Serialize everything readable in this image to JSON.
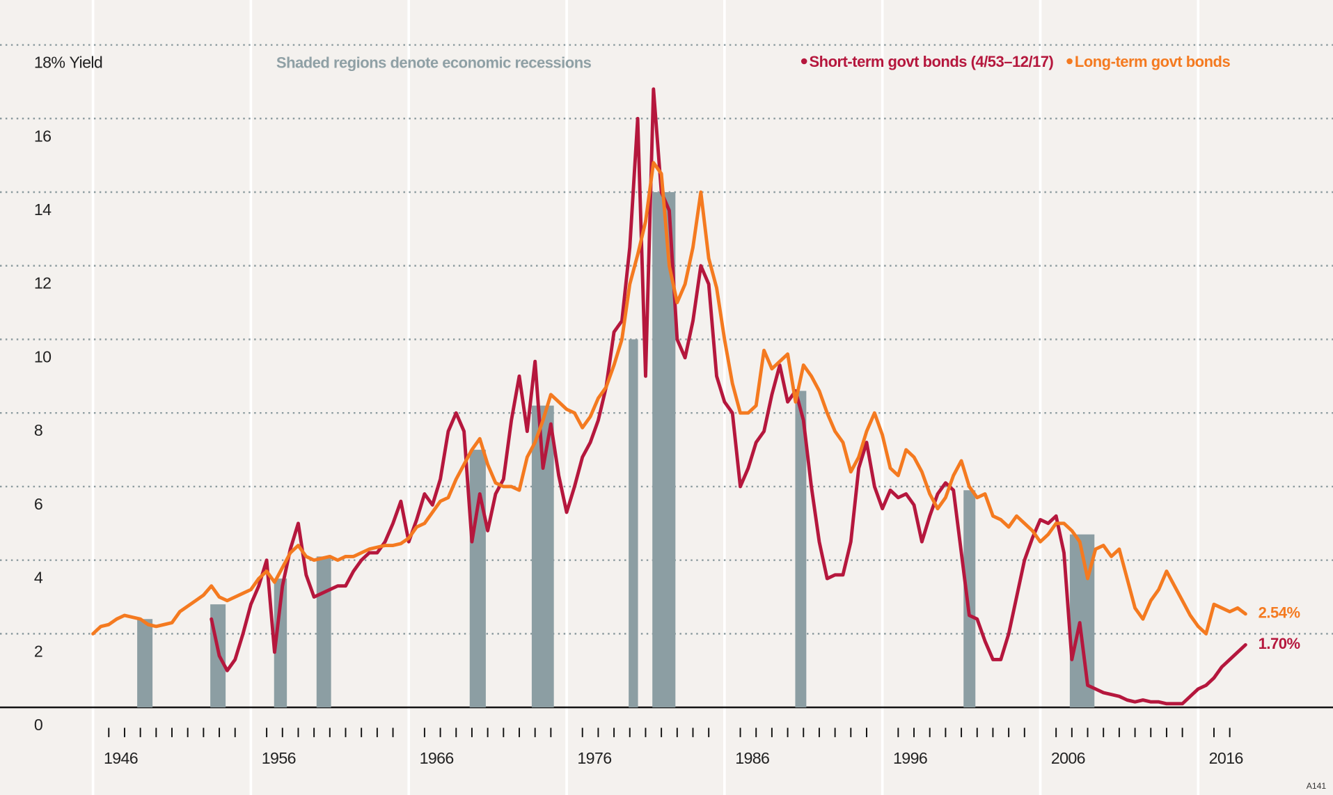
{
  "chart_data": {
    "type": "line",
    "annotation": "Shaded regions denote economic recessions",
    "ylabel": "Yield",
    "footer": "A141",
    "legend": "top-right",
    "xlim": [
      1939.11,
      2023.54
    ],
    "ylim": [
      -2.38,
      19.22
    ],
    "yticks": [
      0,
      2,
      4,
      6,
      8,
      10,
      12,
      14,
      16,
      {
        "value": 18,
        "label": "18%"
      }
    ],
    "xticks": [
      1946,
      1956,
      1966,
      1976,
      1986,
      1996,
      2006,
      2016
    ],
    "xminor_ticks": [
      1946,
      1947,
      1948,
      1949,
      1950,
      1951,
      1952,
      1953,
      1954,
      1956,
      1957,
      1958,
      1959,
      1960,
      1961,
      1962,
      1963,
      1964,
      1966,
      1967,
      1968,
      1969,
      1970,
      1971,
      1972,
      1973,
      1974,
      1976,
      1977,
      1978,
      1979,
      1980,
      1981,
      1982,
      1983,
      1984,
      1986,
      1987,
      1988,
      1989,
      1990,
      1991,
      1992,
      1993,
      1994,
      1996,
      1997,
      1998,
      1999,
      2000,
      2001,
      2002,
      2003,
      2004,
      2006,
      2007,
      2008,
      2009,
      2010,
      2011,
      2012,
      2013,
      2014,
      2016,
      2017
    ],
    "xgrid": [
      1945,
      1955,
      1965,
      1975,
      1985,
      1995,
      2005,
      2015
    ],
    "recession_color": "#8c9ea3",
    "recessions": [
      {
        "start": 1947.8,
        "end": 1948.77,
        "top": 2.4
      },
      {
        "start": 1952.43,
        "end": 1953.4,
        "top": 2.8
      },
      {
        "start": 1956.47,
        "end": 1957.28,
        "top": 3.5
      },
      {
        "start": 1959.16,
        "end": 1960.08,
        "top": 4.1
      },
      {
        "start": 1968.86,
        "end": 1969.88,
        "top": 7.0
      },
      {
        "start": 1972.79,
        "end": 1974.19,
        "top": 8.2
      },
      {
        "start": 1978.93,
        "end": 1979.52,
        "top": 10.0
      },
      {
        "start": 1980.43,
        "end": 1981.89,
        "top": 14.0
      },
      {
        "start": 1989.48,
        "end": 1990.18,
        "top": 8.6
      },
      {
        "start": 2000.14,
        "end": 2000.89,
        "top": 5.9
      },
      {
        "start": 2006.87,
        "end": 2008.43,
        "top": 4.7
      }
    ],
    "x": [
      1945,
      1945.5,
      1946,
      1946.5,
      1947,
      1947.5,
      1948,
      1948.5,
      1949,
      1949.5,
      1950,
      1950.5,
      1951,
      1951.5,
      1952,
      1952.5,
      1953,
      1953.5,
      1954,
      1954.5,
      1955,
      1955.5,
      1956,
      1956.5,
      1957,
      1957.5,
      1958,
      1958.5,
      1959,
      1959.5,
      1960,
      1960.5,
      1961,
      1961.5,
      1962,
      1962.5,
      1963,
      1963.5,
      1964,
      1964.5,
      1965,
      1965.5,
      1966,
      1966.5,
      1967,
      1967.5,
      1968,
      1968.5,
      1969,
      1969.5,
      1970,
      1970.5,
      1971,
      1971.5,
      1972,
      1972.5,
      1973,
      1973.5,
      1974,
      1974.5,
      1975,
      1975.5,
      1976,
      1976.5,
      1977,
      1977.5,
      1978,
      1978.5,
      1979,
      1979.5,
      1980,
      1980.5,
      1981,
      1981.5,
      1982,
      1982.5,
      1983,
      1983.5,
      1984,
      1984.5,
      1985,
      1985.5,
      1986,
      1986.5,
      1987,
      1987.5,
      1988,
      1988.5,
      1989,
      1989.5,
      1990,
      1990.5,
      1991,
      1991.5,
      1992,
      1992.5,
      1993,
      1993.5,
      1994,
      1994.5,
      1995,
      1995.5,
      1996,
      1996.5,
      1997,
      1997.5,
      1998,
      1998.5,
      1999,
      1999.5,
      2000,
      2000.5,
      2001,
      2001.5,
      2002,
      2002.5,
      2003,
      2003.5,
      2004,
      2004.5,
      2005,
      2005.5,
      2006,
      2006.5,
      2007,
      2007.5,
      2008,
      2008.5,
      2009,
      2009.5,
      2010,
      2010.5,
      2011,
      2011.5,
      2012,
      2012.5,
      2013,
      2013.5,
      2014,
      2014.5,
      2015,
      2015.5,
      2016,
      2016.5,
      2017,
      2017.5,
      2018
    ],
    "series": [
      {
        "name": "Short-term govt bonds (4/53–12/17)",
        "color": "#b5173d",
        "end_label": "1.70%",
        "values": [
          null,
          null,
          null,
          null,
          null,
          null,
          null,
          null,
          null,
          null,
          null,
          null,
          null,
          null,
          null,
          2.4,
          1.4,
          1.0,
          1.3,
          2.0,
          2.8,
          3.3,
          4.0,
          1.5,
          3.3,
          4.3,
          5.0,
          3.6,
          3.0,
          3.1,
          3.2,
          3.3,
          3.3,
          3.7,
          4.0,
          4.2,
          4.2,
          4.5,
          5.0,
          5.6,
          4.5,
          5.1,
          5.8,
          5.5,
          6.2,
          7.5,
          8.0,
          7.5,
          4.5,
          5.8,
          4.8,
          5.8,
          6.2,
          7.8,
          9.0,
          7.5,
          9.4,
          6.5,
          7.7,
          6.3,
          5.3,
          6.0,
          6.8,
          7.2,
          7.8,
          8.7,
          10.2,
          10.5,
          12.5,
          16.0,
          9.0,
          16.8,
          14.0,
          13.5,
          10.0,
          9.5,
          10.5,
          12.0,
          11.5,
          9.0,
          8.3,
          8.0,
          6.0,
          6.5,
          7.2,
          7.5,
          8.5,
          9.3,
          8.3,
          8.6,
          7.8,
          6.0,
          4.5,
          3.5,
          3.6,
          3.6,
          4.5,
          6.5,
          7.2,
          6.0,
          5.4,
          5.9,
          5.7,
          5.8,
          5.5,
          4.5,
          5.2,
          5.8,
          6.1,
          5.9,
          4.2,
          2.5,
          2.4,
          1.8,
          1.3,
          1.3,
          2.0,
          3.0,
          4.0,
          4.6,
          5.1,
          5.0,
          5.2,
          4.2,
          1.3,
          2.3,
          0.6,
          0.5,
          0.4,
          0.35,
          0.3,
          0.2,
          0.15,
          0.2,
          0.15,
          0.15,
          0.1,
          0.1,
          0.1,
          0.3,
          0.5,
          0.6,
          0.8,
          1.1,
          1.3,
          1.5,
          1.7
        ]
      },
      {
        "name": "Long-term govt bonds",
        "color": "#f47a20",
        "end_label": "2.54%",
        "values": [
          2.0,
          2.2,
          2.25,
          2.4,
          2.5,
          2.45,
          2.4,
          2.25,
          2.2,
          2.25,
          2.3,
          2.6,
          2.75,
          2.9,
          3.05,
          3.3,
          3.0,
          2.9,
          3.0,
          3.1,
          3.2,
          3.5,
          3.7,
          3.4,
          3.8,
          4.2,
          4.4,
          4.1,
          4.0,
          4.05,
          4.1,
          4.0,
          4.1,
          4.1,
          4.2,
          4.3,
          4.35,
          4.4,
          4.4,
          4.45,
          4.6,
          4.9,
          5.0,
          5.3,
          5.6,
          5.7,
          6.2,
          6.6,
          7.0,
          7.3,
          6.6,
          6.1,
          6.0,
          6.0,
          5.9,
          6.8,
          7.2,
          7.8,
          8.5,
          8.3,
          8.1,
          8.0,
          7.6,
          7.9,
          8.4,
          8.7,
          9.3,
          10.0,
          11.5,
          12.3,
          13.2,
          14.8,
          14.5,
          12.0,
          11.0,
          11.5,
          12.5,
          14.0,
          12.2,
          11.4,
          10.0,
          8.8,
          8.0,
          8.0,
          8.2,
          9.7,
          9.2,
          9.4,
          9.6,
          8.3,
          9.3,
          9.0,
          8.6,
          8.0,
          7.5,
          7.2,
          6.4,
          6.8,
          7.5,
          8.0,
          7.4,
          6.5,
          6.3,
          7.0,
          6.8,
          6.4,
          5.8,
          5.4,
          5.7,
          6.3,
          6.7,
          6.0,
          5.7,
          5.8,
          5.2,
          5.1,
          4.9,
          5.2,
          5.0,
          4.8,
          4.5,
          4.7,
          5.0,
          5.0,
          4.8,
          4.5,
          3.5,
          4.3,
          4.4,
          4.1,
          4.3,
          3.5,
          2.7,
          2.4,
          2.9,
          3.2,
          3.7,
          3.3,
          2.9,
          2.5,
          2.2,
          2.0,
          2.8,
          2.7,
          2.6,
          2.7,
          2.54
        ]
      }
    ]
  }
}
